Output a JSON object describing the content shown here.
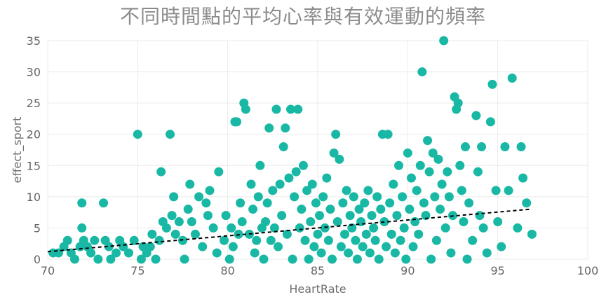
{
  "chart_data": {
    "type": "scatter",
    "title": "不同時間點的平均心率與有效運動的頻率",
    "xlabel": "HeartRate",
    "ylabel": "effect_sport",
    "xlim": [
      70,
      100
    ],
    "ylim": [
      0,
      35
    ],
    "xticks": [
      70,
      75,
      80,
      85,
      90,
      95,
      100
    ],
    "yticks": [
      0,
      5,
      10,
      15,
      20,
      25,
      30,
      35
    ],
    "grid": true,
    "legend": "none",
    "point_color": "#19B8A5",
    "trendline_color": "#000000",
    "series": [
      {
        "points": [
          [
            70.3,
            1
          ],
          [
            70.6,
            1
          ],
          [
            70.9,
            2
          ],
          [
            71.1,
            3
          ],
          [
            71.3,
            1
          ],
          [
            71.5,
            0
          ],
          [
            71.8,
            2
          ],
          [
            71.9,
            9
          ],
          [
            71.9,
            5
          ],
          [
            72.0,
            3
          ],
          [
            72.2,
            2
          ],
          [
            72.4,
            1
          ],
          [
            72.6,
            3
          ],
          [
            72.8,
            0
          ],
          [
            73.1,
            9
          ],
          [
            73.2,
            3
          ],
          [
            73.4,
            2
          ],
          [
            73.5,
            0
          ],
          [
            73.8,
            1
          ],
          [
            74.0,
            3
          ],
          [
            74.2,
            2
          ],
          [
            74.5,
            1
          ],
          [
            74.8,
            3
          ],
          [
            75.0,
            20
          ],
          [
            75.2,
            0
          ],
          [
            75.3,
            2
          ],
          [
            75.5,
            1
          ],
          [
            75.7,
            2
          ],
          [
            75.8,
            4
          ],
          [
            76.0,
            0
          ],
          [
            76.2,
            3
          ],
          [
            76.3,
            14
          ],
          [
            76.4,
            6
          ],
          [
            76.6,
            5
          ],
          [
            76.8,
            20
          ],
          [
            76.9,
            7
          ],
          [
            77.0,
            10
          ],
          [
            77.1,
            4
          ],
          [
            77.3,
            6
          ],
          [
            77.5,
            3
          ],
          [
            77.6,
            0
          ],
          [
            77.8,
            8
          ],
          [
            77.9,
            12
          ],
          [
            78.0,
            6
          ],
          [
            78.2,
            4
          ],
          [
            78.4,
            10
          ],
          [
            78.6,
            2
          ],
          [
            78.8,
            9
          ],
          [
            78.9,
            7
          ],
          [
            79.0,
            11
          ],
          [
            79.2,
            5
          ],
          [
            79.4,
            1
          ],
          [
            79.5,
            14
          ],
          [
            79.8,
            3
          ],
          [
            79.9,
            7
          ],
          [
            80.1,
            0
          ],
          [
            80.2,
            5
          ],
          [
            80.3,
            2
          ],
          [
            80.4,
            22
          ],
          [
            80.5,
            22
          ],
          [
            80.6,
            4
          ],
          [
            80.7,
            9
          ],
          [
            80.8,
            6
          ],
          [
            80.9,
            25
          ],
          [
            81.0,
            24
          ],
          [
            81.2,
            4
          ],
          [
            81.3,
            12
          ],
          [
            81.4,
            8
          ],
          [
            81.5,
            1
          ],
          [
            81.6,
            3
          ],
          [
            81.7,
            10
          ],
          [
            81.8,
            15
          ],
          [
            81.9,
            5
          ],
          [
            82.0,
            0
          ],
          [
            82.1,
            6
          ],
          [
            82.2,
            9
          ],
          [
            82.3,
            21
          ],
          [
            82.4,
            3
          ],
          [
            82.5,
            11
          ],
          [
            82.6,
            5
          ],
          [
            82.7,
            24
          ],
          [
            82.8,
            2
          ],
          [
            82.9,
            12
          ],
          [
            83.0,
            7
          ],
          [
            83.1,
            18
          ],
          [
            83.2,
            21
          ],
          [
            83.3,
            4
          ],
          [
            83.4,
            13
          ],
          [
            83.5,
            24
          ],
          [
            83.6,
            0
          ],
          [
            83.7,
            10
          ],
          [
            83.8,
            14
          ],
          [
            83.9,
            24
          ],
          [
            84.0,
            5
          ],
          [
            84.1,
            8
          ],
          [
            84.2,
            15
          ],
          [
            84.3,
            3
          ],
          [
            84.4,
            11
          ],
          [
            84.5,
            0
          ],
          [
            84.6,
            6
          ],
          [
            84.7,
            12
          ],
          [
            84.8,
            2
          ],
          [
            84.9,
            9
          ],
          [
            85.0,
            4
          ],
          [
            85.1,
            7
          ],
          [
            85.2,
            1
          ],
          [
            85.3,
            10
          ],
          [
            85.4,
            5
          ],
          [
            85.5,
            13
          ],
          [
            85.6,
            3
          ],
          [
            85.7,
            8
          ],
          [
            85.8,
            0
          ],
          [
            85.9,
            17
          ],
          [
            86.0,
            20
          ],
          [
            86.1,
            6
          ],
          [
            86.2,
            16
          ],
          [
            86.3,
            2
          ],
          [
            86.4,
            9
          ],
          [
            86.5,
            4
          ],
          [
            86.6,
            11
          ],
          [
            86.7,
            1
          ],
          [
            86.8,
            7
          ],
          [
            86.9,
            5
          ],
          [
            87.0,
            10
          ],
          [
            87.1,
            3
          ],
          [
            87.2,
            0
          ],
          [
            87.3,
            8
          ],
          [
            87.4,
            6
          ],
          [
            87.5,
            2
          ],
          [
            87.6,
            9
          ],
          [
            87.7,
            4
          ],
          [
            87.8,
            11
          ],
          [
            87.9,
            1
          ],
          [
            88.0,
            7
          ],
          [
            88.1,
            5
          ],
          [
            88.2,
            3
          ],
          [
            88.3,
            10
          ],
          [
            88.4,
            0
          ],
          [
            88.5,
            8
          ],
          [
            88.6,
            20
          ],
          [
            88.7,
            6
          ],
          [
            88.8,
            2
          ],
          [
            88.9,
            20
          ],
          [
            89.0,
            9
          ],
          [
            89.1,
            4
          ],
          [
            89.2,
            12
          ],
          [
            89.3,
            1
          ],
          [
            89.4,
            7
          ],
          [
            89.5,
            15
          ],
          [
            89.6,
            3
          ],
          [
            89.7,
            10
          ],
          [
            89.8,
            5
          ],
          [
            89.9,
            0
          ],
          [
            90.0,
            17
          ],
          [
            90.1,
            8
          ],
          [
            90.2,
            13
          ],
          [
            90.3,
            2
          ],
          [
            90.4,
            6
          ],
          [
            90.5,
            11
          ],
          [
            90.6,
            4
          ],
          [
            90.7,
            15
          ],
          [
            90.8,
            30
          ],
          [
            90.9,
            9
          ],
          [
            91.0,
            7
          ],
          [
            91.1,
            19
          ],
          [
            91.2,
            14
          ],
          [
            91.3,
            0
          ],
          [
            91.4,
            17
          ],
          [
            91.5,
            10
          ],
          [
            91.6,
            3
          ],
          [
            91.7,
            16
          ],
          [
            91.8,
            8
          ],
          [
            91.9,
            12
          ],
          [
            92.0,
            35
          ],
          [
            92.1,
            5
          ],
          [
            92.2,
            14
          ],
          [
            92.3,
            10
          ],
          [
            92.4,
            1
          ],
          [
            92.5,
            7
          ],
          [
            92.6,
            26
          ],
          [
            92.7,
            24
          ],
          [
            92.8,
            25
          ],
          [
            92.9,
            15
          ],
          [
            93.0,
            11
          ],
          [
            93.1,
            6
          ],
          [
            93.2,
            18
          ],
          [
            93.3,
            0
          ],
          [
            93.4,
            9
          ],
          [
            93.6,
            3
          ],
          [
            93.8,
            23
          ],
          [
            93.9,
            14
          ],
          [
            94.0,
            7
          ],
          [
            94.1,
            18
          ],
          [
            94.2,
            5
          ],
          [
            94.4,
            1
          ],
          [
            94.6,
            22
          ],
          [
            94.7,
            28
          ],
          [
            94.9,
            11
          ],
          [
            95.0,
            6
          ],
          [
            95.2,
            2
          ],
          [
            95.4,
            18
          ],
          [
            95.6,
            11
          ],
          [
            95.8,
            29
          ],
          [
            96.1,
            5
          ],
          [
            96.3,
            18
          ],
          [
            96.4,
            13
          ],
          [
            96.6,
            9
          ],
          [
            96.9,
            4
          ]
        ]
      }
    ],
    "trendline": {
      "style": "dashed",
      "from": [
        70,
        1.2
      ],
      "to": [
        96.8,
        8
      ]
    }
  }
}
